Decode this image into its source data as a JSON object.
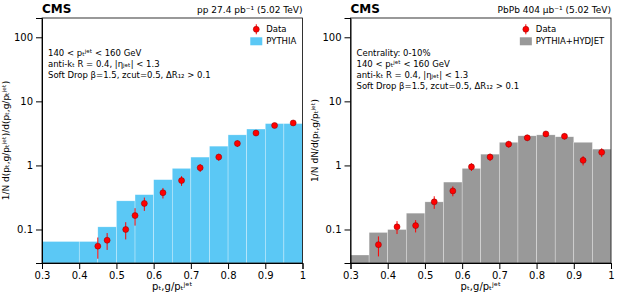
{
  "chart_data": [
    {
      "type": "histogram",
      "title": "CMS",
      "subtitle": "pp 27.4 pb⁻¹ (5.02 TeV)",
      "annotations": [
        "140 < pₜʲᵉᵗ < 160 GeV",
        "anti-kₜ R = 0.4, |ηⱼₑₜ| < 1.3",
        "Soft Drop β=1.5, zcut=0.5, ΔR₁₂ > 0.1"
      ],
      "x_label": "pₜ,g/pₜʲᵉᵗ",
      "y_label": "1/N d(pₜ,g/pₜʲᵉᵗ)/d(pₜ,g/pₜʲᵉᵗ)",
      "bins": [
        0.3,
        0.4,
        0.45,
        0.5,
        0.55,
        0.6,
        0.65,
        0.7,
        0.75,
        0.8,
        0.85,
        0.9,
        0.95,
        1.0
      ],
      "series": [
        {
          "name": "Data",
          "type": "scatter",
          "color": "red",
          "marker": "circle",
          "x": [
            0.45,
            0.475,
            0.525,
            0.55,
            0.575,
            0.625,
            0.675,
            0.725,
            0.775,
            0.825,
            0.875,
            0.925,
            0.975
          ],
          "values": [
            0.055,
            0.068,
            0.1,
            0.165,
            0.255,
            0.375,
            0.58,
            0.92,
            1.35,
            2.2,
            3.2,
            4.2,
            4.6
          ],
          "error_lo": [
            0.02,
            0.02,
            0.03,
            0.05,
            0.06,
            0.07,
            0.1,
            0.13,
            0.17,
            0.25,
            0.3,
            0.35,
            0.4
          ],
          "error_hi": [
            0.02,
            0.02,
            0.03,
            0.05,
            0.06,
            0.07,
            0.1,
            0.13,
            0.17,
            0.25,
            0.3,
            0.35,
            0.4
          ]
        },
        {
          "name": "PYTHIA",
          "type": "histogram",
          "color": "#5BC8F5",
          "values": [
            0.065,
            0.065,
            0.11,
            0.28,
            0.35,
            0.6,
            0.9,
            1.35,
            2.0,
            3.0,
            3.7,
            4.5,
            4.5
          ]
        }
      ],
      "xlim": [
        0.3,
        1.0
      ],
      "ylim": [
        0.03,
        200.0
      ],
      "xticks": [
        0.3,
        0.4,
        0.5,
        0.6,
        0.7,
        0.8,
        0.9,
        1
      ],
      "yticks": [
        0.1,
        1,
        10,
        100
      ],
      "log": "y",
      "grid": false,
      "legend": "upper right"
    },
    {
      "type": "histogram",
      "title": "CMS",
      "subtitle": "PbPb 404 μb⁻¹ (5.02 TeV)",
      "annotations": [
        "Centrality: 0-10%",
        "140 < pₜʲᵉᵗ < 160 GeV",
        "anti-kₜ R = 0.4, |ηⱼₑₜ| < 1.3",
        "Soft Drop β=1.5, zcut=0.5, ΔR₁₂ > 0.1"
      ],
      "x_label": "pₜ,g/pₜʲᵉᵗ",
      "y_label": "1/N dN/d(pₜ,g/pₜʲᵉᵗ)",
      "bins": [
        0.3,
        0.35,
        0.4,
        0.45,
        0.5,
        0.55,
        0.6,
        0.65,
        0.7,
        0.75,
        0.8,
        0.85,
        0.9,
        0.95,
        1.0
      ],
      "series": [
        {
          "name": "Data",
          "type": "scatter",
          "color": "red",
          "marker": "circle",
          "x": [
            0.375,
            0.425,
            0.475,
            0.525,
            0.575,
            0.625,
            0.675,
            0.725,
            0.775,
            0.825,
            0.875,
            0.925,
            0.975
          ],
          "values": [
            0.058,
            0.11,
            0.115,
            0.27,
            0.4,
            0.95,
            1.35,
            2.15,
            2.7,
            3.1,
            2.85,
            1.2,
            1.6
          ],
          "error_lo": [
            0.02,
            0.025,
            0.025,
            0.06,
            0.07,
            0.13,
            0.18,
            0.25,
            0.3,
            0.32,
            0.3,
            0.2,
            0.25
          ],
          "error_hi": [
            0.02,
            0.025,
            0.025,
            0.06,
            0.07,
            0.13,
            0.18,
            0.25,
            0.3,
            0.32,
            0.3,
            0.2,
            0.25
          ]
        },
        {
          "name": "PYTHIA+HYDJET",
          "type": "histogram",
          "color": "#999999",
          "values": [
            0.04,
            0.09,
            0.1,
            0.18,
            0.27,
            0.55,
            0.9,
            1.5,
            2.3,
            2.9,
            3.0,
            2.8,
            2.3,
            1.8
          ]
        }
      ],
      "xlim": [
        0.3,
        1.0
      ],
      "ylim": [
        0.03,
        200.0
      ],
      "xticks": [
        0.3,
        0.4,
        0.5,
        0.6,
        0.7,
        0.8,
        0.9,
        1
      ],
      "yticks": [
        0.1,
        1,
        10,
        100
      ],
      "log": "y",
      "grid": false,
      "legend": "upper right"
    }
  ]
}
